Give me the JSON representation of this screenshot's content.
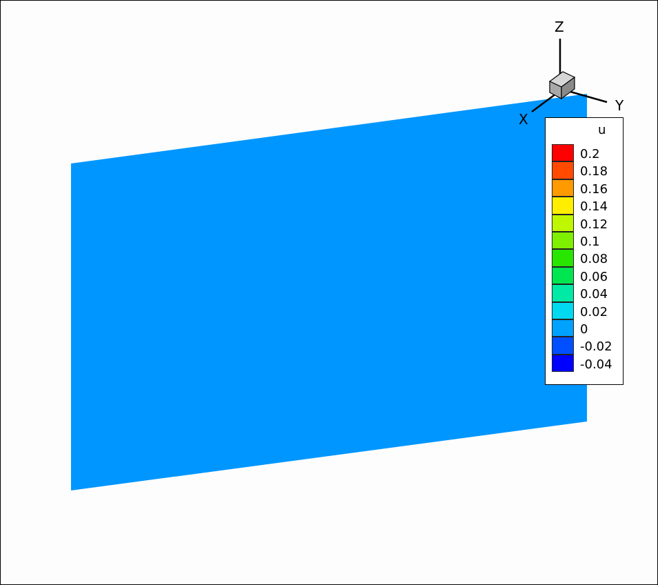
{
  "chart_data": {
    "type": "heatmap",
    "variable": "u",
    "field_value": 0,
    "legend": {
      "title": "u",
      "placement": "right",
      "levels": [
        {
          "label": "0.2",
          "color": "#ff0000"
        },
        {
          "label": "0.18",
          "color": "#ff4a00"
        },
        {
          "label": "0.16",
          "color": "#ff9a00"
        },
        {
          "label": "0.14",
          "color": "#ffee00"
        },
        {
          "label": "0.12",
          "color": "#bff700"
        },
        {
          "label": "0.1",
          "color": "#7ff000"
        },
        {
          "label": "0.08",
          "color": "#28e600"
        },
        {
          "label": "0.06",
          "color": "#00e650"
        },
        {
          "label": "0.04",
          "color": "#00eaa6"
        },
        {
          "label": "0.02",
          "color": "#00d9f0"
        },
        {
          "label": "0",
          "color": "#00a2ff"
        },
        {
          "label": "-0.02",
          "color": "#0050ff"
        },
        {
          "label": "-0.04",
          "color": "#0000ff"
        }
      ]
    },
    "surface_color": "#0096ff",
    "axes_triad": {
      "labels": [
        "X",
        "Y",
        "Z"
      ]
    }
  }
}
